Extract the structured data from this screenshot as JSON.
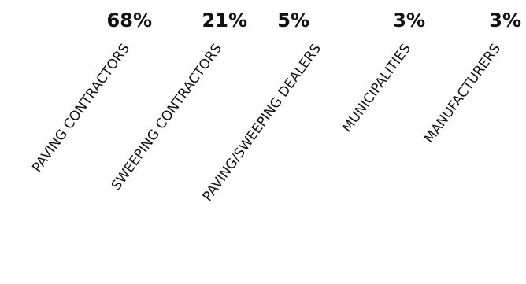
{
  "chart_data": {
    "type": "table",
    "categories": [
      "PAVING CONTRACTORS",
      "SWEEPING CONTRACTORS",
      "PAVING/SWEEPING DEALERS",
      "MUNICIPALITIES",
      "MANUFACTURERS"
    ],
    "values": [
      68,
      21,
      5,
      3,
      3
    ],
    "value_labels": [
      "68%",
      "21%",
      "5%",
      "3%",
      "3%"
    ],
    "colors": {
      "text": "#111111",
      "background": "#ffffff"
    }
  }
}
